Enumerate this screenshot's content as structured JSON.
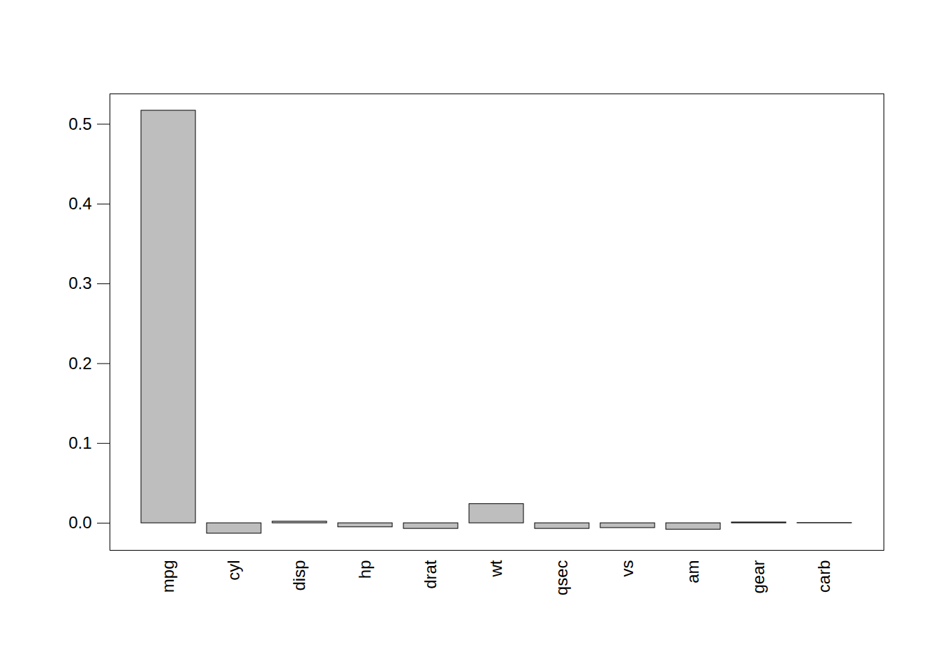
{
  "chart_data": {
    "type": "bar",
    "categories": [
      "mpg",
      "cyl",
      "disp",
      "hp",
      "drat",
      "wt",
      "qsec",
      "vs",
      "am",
      "gear",
      "carb"
    ],
    "values": [
      0.517,
      -0.013,
      0.002,
      -0.005,
      -0.007,
      0.024,
      -0.007,
      -0.006,
      -0.008,
      0.001,
      0.0003
    ],
    "color": "#bebebe",
    "ylim": [
      -0.034,
      0.538
    ],
    "yticks": [
      {
        "value": 0,
        "label": "0.0"
      },
      0.1,
      0.2,
      0.3,
      0.4,
      0.5
    ],
    "grid": false
  }
}
